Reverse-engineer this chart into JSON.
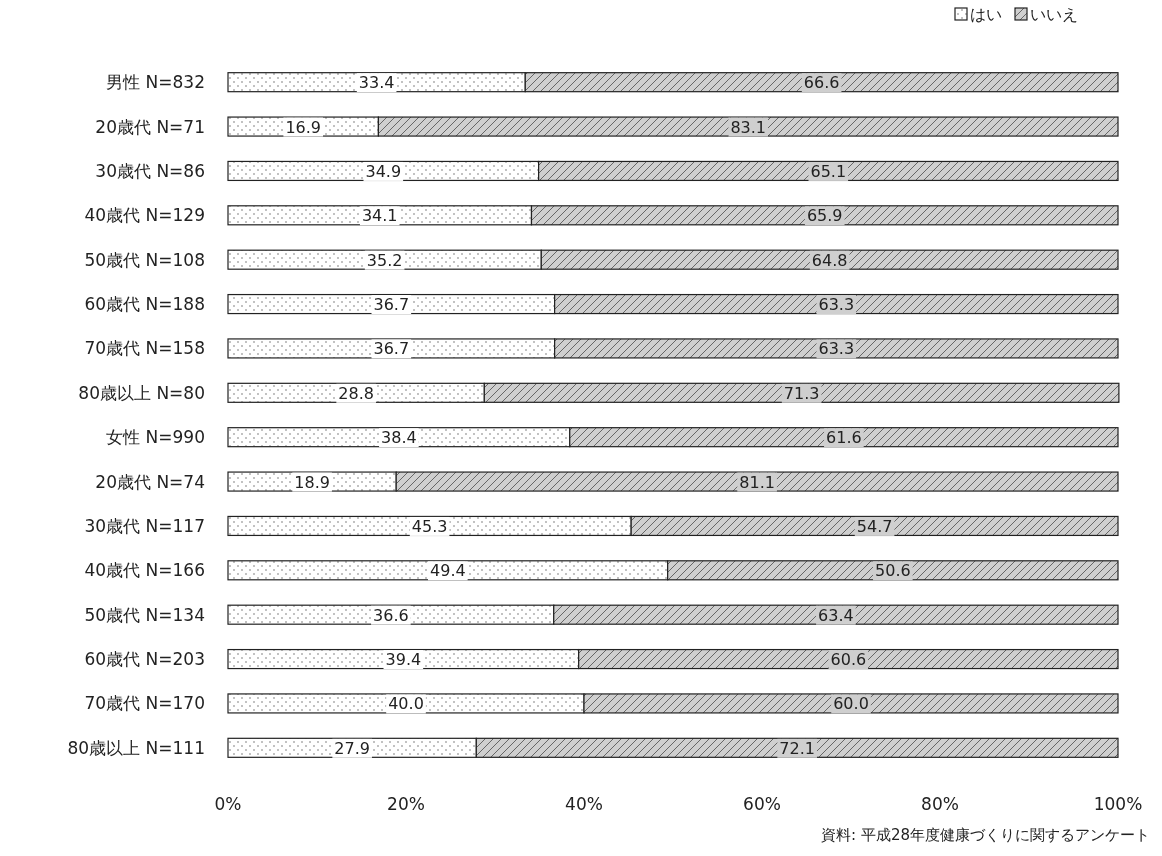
{
  "chart_data": {
    "type": "bar",
    "orientation": "horizontal",
    "stacked": true,
    "categories": [
      "男性 N=832",
      "20歳代 N=71",
      "30歳代 N=86",
      "40歳代 N=129",
      "50歳代 N=108",
      "60歳代 N=188",
      "70歳代 N=158",
      "80歳以上 N=80",
      "女性 N=990",
      "20歳代 N=74",
      "30歳代 N=117",
      "40歳代 N=166",
      "50歳代 N=134",
      "60歳代 N=203",
      "70歳代 N=170",
      "80歳以上 N=111"
    ],
    "series": [
      {
        "name": "はい",
        "color": "#ffffff",
        "values": [
          33.4,
          16.9,
          34.9,
          34.1,
          35.2,
          36.7,
          36.7,
          28.8,
          38.4,
          18.9,
          45.3,
          49.4,
          36.6,
          39.4,
          40.0,
          27.9
        ],
        "value_labels": [
          "33.4",
          "16.9",
          "34.9",
          "34.1",
          "35.2",
          "36.7",
          "36.7",
          "28.8",
          "38.4",
          "18.9",
          "45.3",
          "49.4",
          "36.6",
          "39.4",
          "40.0",
          "27.9"
        ]
      },
      {
        "name": "いいえ",
        "color": "#cfcfcf",
        "values": [
          66.6,
          83.1,
          65.1,
          65.9,
          64.8,
          63.3,
          63.3,
          71.3,
          61.6,
          81.1,
          54.7,
          50.6,
          63.4,
          60.6,
          60.0,
          72.1
        ],
        "value_labels": [
          "66.6",
          "83.1",
          "65.1",
          "65.9",
          "64.8",
          "63.3",
          "63.3",
          "71.3",
          "61.6",
          "81.1",
          "54.7",
          "50.6",
          "63.4",
          "60.6",
          "60.0",
          "72.1"
        ]
      }
    ],
    "xlim": [
      0,
      100
    ],
    "xticks": [
      {
        "value": 0,
        "label": "0%"
      },
      {
        "value": 20,
        "label": "20%"
      },
      {
        "value": 40,
        "label": "40%"
      },
      {
        "value": 60,
        "label": "60%"
      },
      {
        "value": 80,
        "label": "80%"
      },
      {
        "value": 100,
        "label": "100%"
      }
    ],
    "grid": false,
    "legend": "top right",
    "annotations": [
      "資料: 平成28年度健康づくりに関するアンケート"
    ]
  }
}
